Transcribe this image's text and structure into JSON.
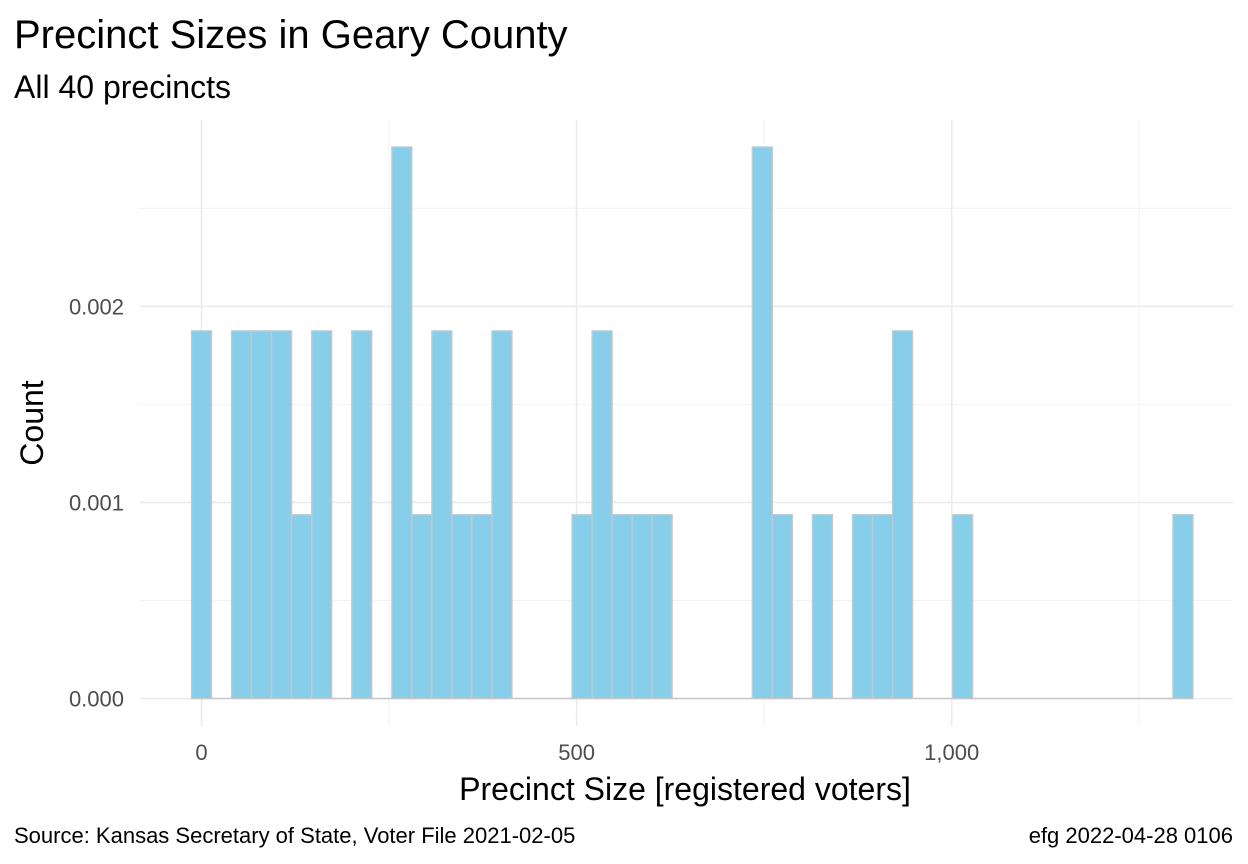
{
  "chart_data": {
    "type": "bar",
    "title": "Precinct Sizes in Geary County",
    "subtitle": "All 40 precincts",
    "xlabel": "Precinct Size [registered voters]",
    "ylabel": "Count",
    "caption_left": "Source:  Kansas Secretary of State, Voter File  2021-02-05",
    "caption_right": "efg 2022-04-28 0106",
    "bin_width": 26.7,
    "bins": [
      {
        "center": 0,
        "value": 0.001875
      },
      {
        "center": 53.4,
        "value": 0.001875
      },
      {
        "center": 80.1,
        "value": 0.001875
      },
      {
        "center": 106.8,
        "value": 0.001875
      },
      {
        "center": 133.5,
        "value": 0.0009375
      },
      {
        "center": 160.2,
        "value": 0.001875
      },
      {
        "center": 213.6,
        "value": 0.001875
      },
      {
        "center": 267,
        "value": 0.0028125
      },
      {
        "center": 293.7,
        "value": 0.0009375
      },
      {
        "center": 320.4,
        "value": 0.001875
      },
      {
        "center": 347.1,
        "value": 0.0009375
      },
      {
        "center": 373.8,
        "value": 0.0009375
      },
      {
        "center": 400.5,
        "value": 0.001875
      },
      {
        "center": 507.3,
        "value": 0.0009375
      },
      {
        "center": 534,
        "value": 0.001875
      },
      {
        "center": 560.7,
        "value": 0.0009375
      },
      {
        "center": 587.4,
        "value": 0.0009375
      },
      {
        "center": 614.1,
        "value": 0.0009375
      },
      {
        "center": 747.6,
        "value": 0.0028125
      },
      {
        "center": 774.3,
        "value": 0.0009375
      },
      {
        "center": 827.7,
        "value": 0.0009375
      },
      {
        "center": 881.1,
        "value": 0.0009375
      },
      {
        "center": 907.8,
        "value": 0.0009375
      },
      {
        "center": 934.5,
        "value": 0.001875
      },
      {
        "center": 1014.6,
        "value": 0.0009375
      },
      {
        "center": 1308.3,
        "value": 0.0009375
      }
    ],
    "xlim": [
      -82,
      1375
    ],
    "ylim": [
      -0.00014,
      0.00295
    ],
    "x_ticks": [
      {
        "value": 0,
        "label": "0"
      },
      {
        "value": 500,
        "label": "500"
      },
      {
        "value": 1000,
        "label": "1,000"
      }
    ],
    "y_ticks": [
      {
        "value": 0,
        "label": "0.000"
      },
      {
        "value": 0.001,
        "label": "0.001"
      },
      {
        "value": 0.002,
        "label": "0.002"
      }
    ],
    "x_minor": [
      250,
      750,
      1250
    ],
    "y_minor": [
      0.0005,
      0.0015,
      0.0025
    ],
    "grid": true,
    "bar_fill": "#87ceeb",
    "bar_stroke": "#c8c8c8"
  }
}
